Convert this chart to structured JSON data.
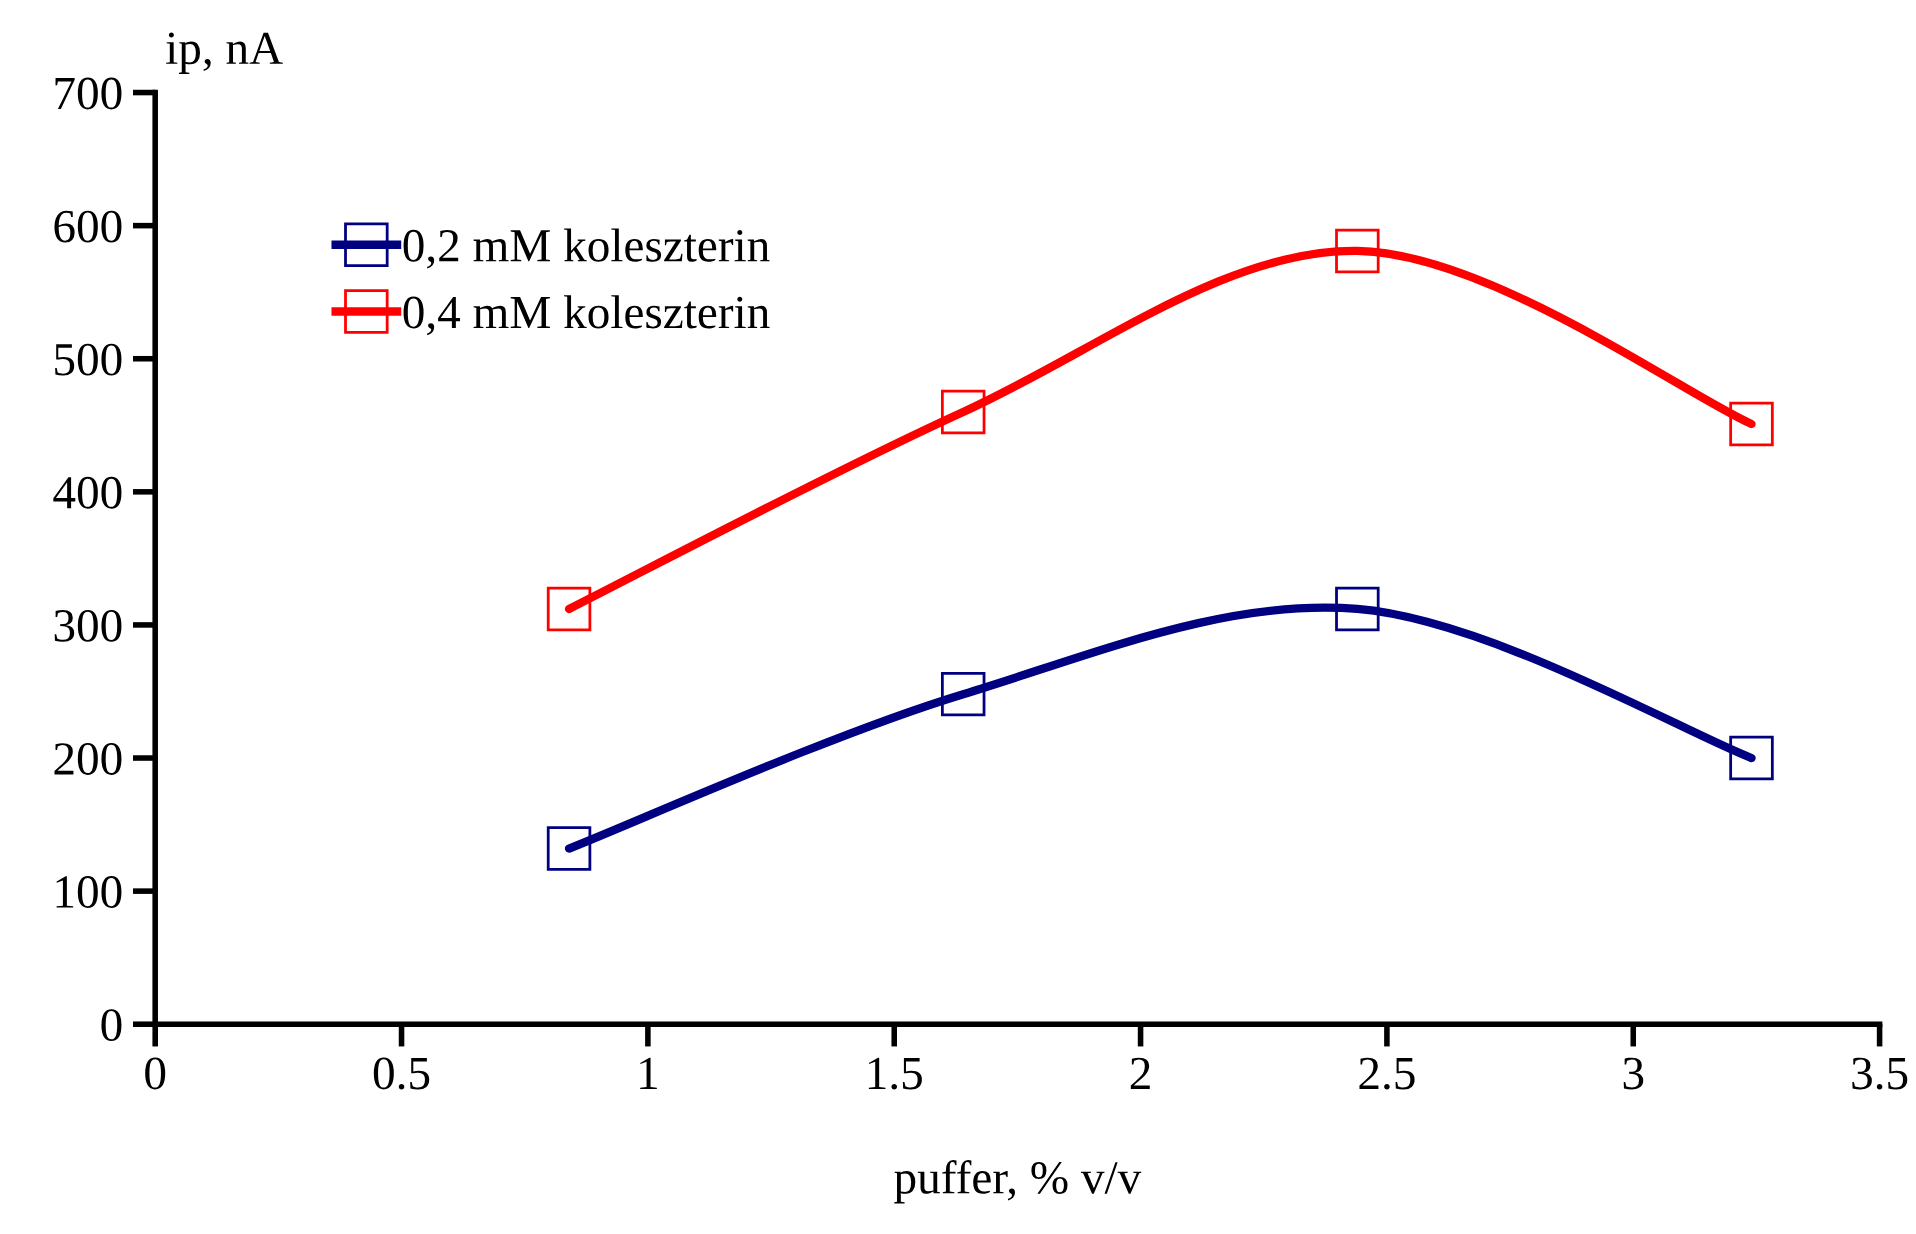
{
  "chart_data": {
    "type": "line",
    "xlabel": "puffer, % v/v",
    "ylabel": "ip, nA",
    "x": [
      0.84,
      1.64,
      2.44,
      3.24
    ],
    "series": [
      {
        "name": "0,2 mM koleszterin",
        "color": "#000080",
        "values": [
          132,
          248,
          312,
          200
        ]
      },
      {
        "name": "0,4 mM koleszterin",
        "color": "#ff0000",
        "values": [
          312,
          460,
          581,
          451
        ]
      }
    ],
    "xlim": [
      0,
      3.5
    ],
    "xticks": [
      0,
      0.5,
      1,
      1.5,
      2,
      2.5,
      3,
      3.5
    ],
    "ylim": [
      0,
      700
    ],
    "yticks": [
      0,
      100,
      200,
      300,
      400,
      500,
      600,
      700
    ],
    "marker": "square",
    "grid": false,
    "legend": "top left"
  }
}
